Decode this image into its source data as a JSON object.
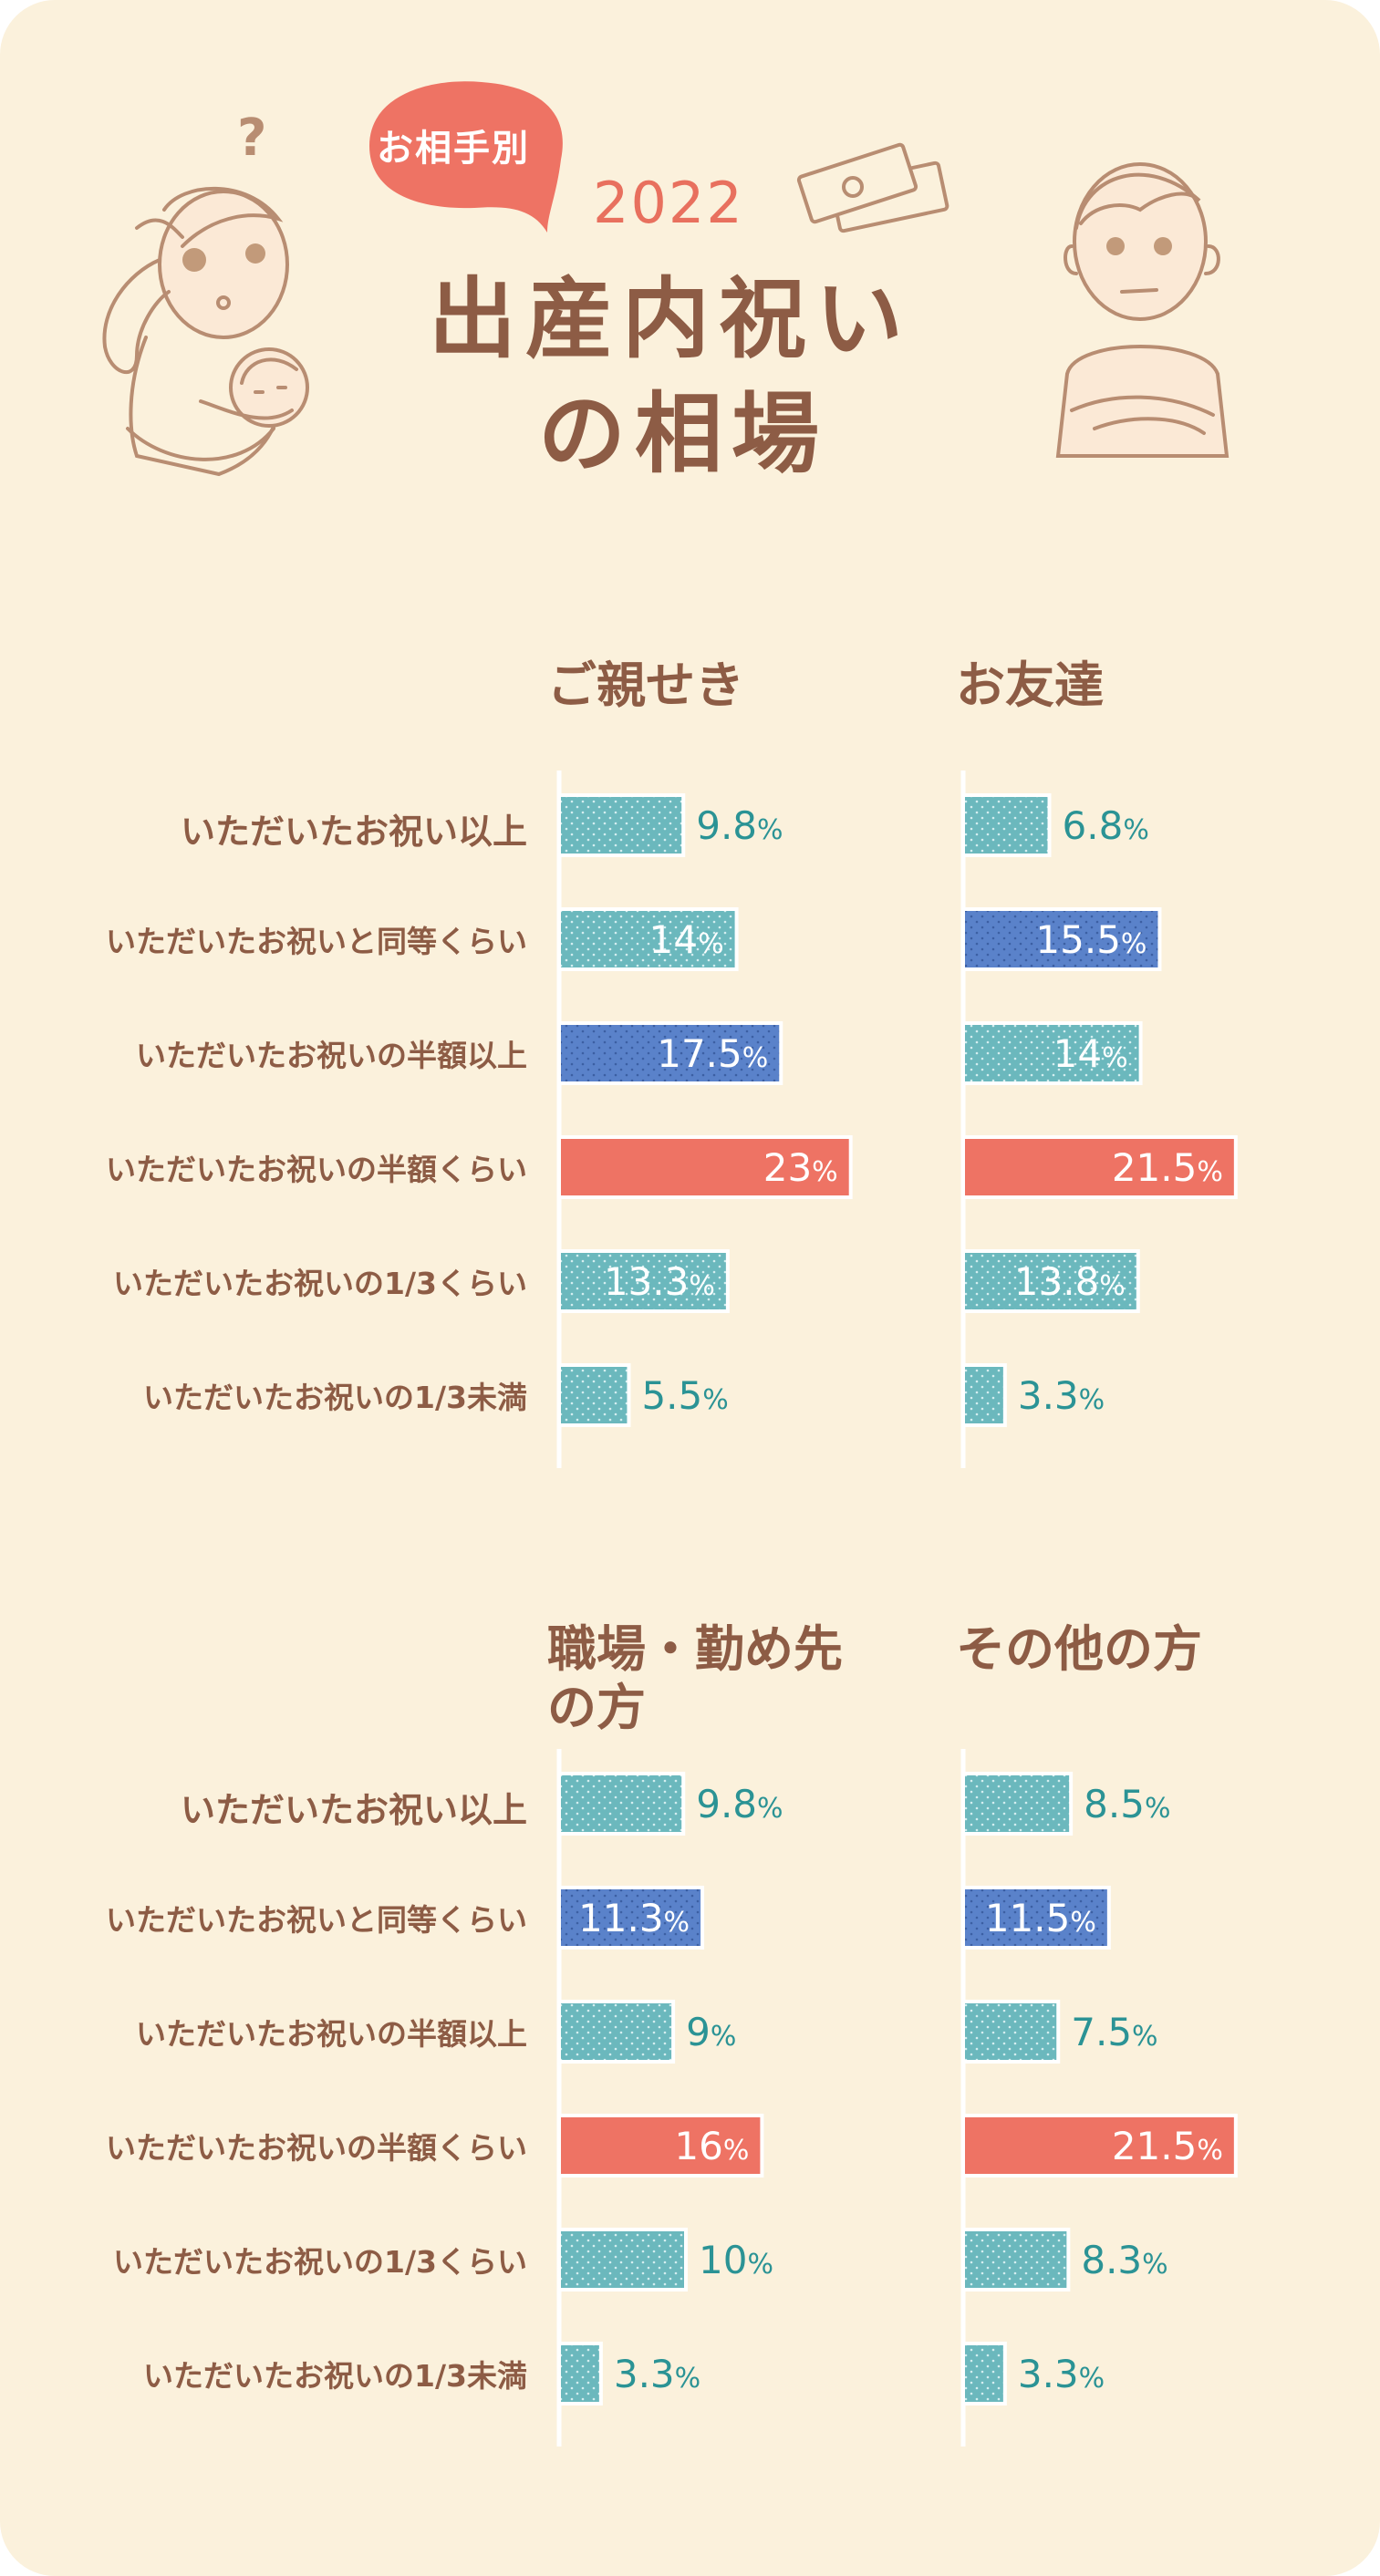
{
  "header": {
    "badge": "お相手別",
    "year": "2022",
    "title_line1": "出産内祝い",
    "title_line2": "の相場",
    "question_mark": "?"
  },
  "colors": {
    "background": "#fbf1dc",
    "title_brown": "#8d5c45",
    "accent_red": "#ee7364",
    "teal": "#6bb8bd",
    "blue": "#5a82ca",
    "teal_text": "#2b9395"
  },
  "illustrations": [
    "mother-with-baby-illustration",
    "money-bills-illustration",
    "man-arms-crossed-illustration"
  ],
  "chart_data": [
    {
      "type": "bar",
      "title": "ご親せき",
      "categories": [
        "いただいたお祝い以上",
        "いただいたお祝いと同等くらい",
        "いただいたお祝いの半額以上",
        "いただいたお祝いの半額くらい",
        "いただいたお祝いの1/3くらい",
        "いただいたお祝いの1/3未満"
      ],
      "values": [
        9.8,
        14,
        17.5,
        23,
        13.3,
        5.5
      ],
      "labels": [
        "9.8%",
        "14%",
        "17.5%",
        "23%",
        "13.3%",
        "5.5%"
      ],
      "bar_colors": [
        "teal",
        "teal",
        "blue",
        "red",
        "teal",
        "teal"
      ]
    },
    {
      "type": "bar",
      "title": "お友達",
      "categories": [
        "いただいたお祝い以上",
        "いただいたお祝いと同等くらい",
        "いただいたお祝いの半額以上",
        "いただいたお祝いの半額くらい",
        "いただいたお祝いの1/3くらい",
        "いただいたお祝いの1/3未満"
      ],
      "values": [
        6.8,
        15.5,
        14,
        21.5,
        13.8,
        3.3
      ],
      "labels": [
        "6.8%",
        "15.5%",
        "14%",
        "21.5%",
        "13.8%",
        "3.3%"
      ],
      "bar_colors": [
        "teal",
        "blue",
        "teal",
        "red",
        "teal",
        "teal"
      ]
    },
    {
      "type": "bar",
      "title": "職場・勤め先の方",
      "categories": [
        "いただいたお祝い以上",
        "いただいたお祝いと同等くらい",
        "いただいたお祝いの半額以上",
        "いただいたお祝いの半額くらい",
        "いただいたお祝いの1/3くらい",
        "いただいたお祝いの1/3未満"
      ],
      "values": [
        9.8,
        11.3,
        9,
        16,
        10,
        3.3
      ],
      "labels": [
        "9.8%",
        "11.3%",
        "9%",
        "16%",
        "10%",
        "3.3%"
      ],
      "bar_colors": [
        "teal",
        "blue",
        "teal",
        "red",
        "teal",
        "teal"
      ]
    },
    {
      "type": "bar",
      "title": "その他の方",
      "categories": [
        "いただいたお祝い以上",
        "いただいたお祝いと同等くらい",
        "いただいたお祝いの半額以上",
        "いただいたお祝いの半額くらい",
        "いただいたお祝いの1/3くらい",
        "いただいたお祝いの1/3未満"
      ],
      "values": [
        8.5,
        11.5,
        7.5,
        21.5,
        8.3,
        3.3
      ],
      "labels": [
        "8.5%",
        "11.5%",
        "7.5%",
        "21.5%",
        "8.3%",
        "3.3%"
      ],
      "bar_colors": [
        "teal",
        "blue",
        "teal",
        "red",
        "teal",
        "teal"
      ]
    }
  ]
}
